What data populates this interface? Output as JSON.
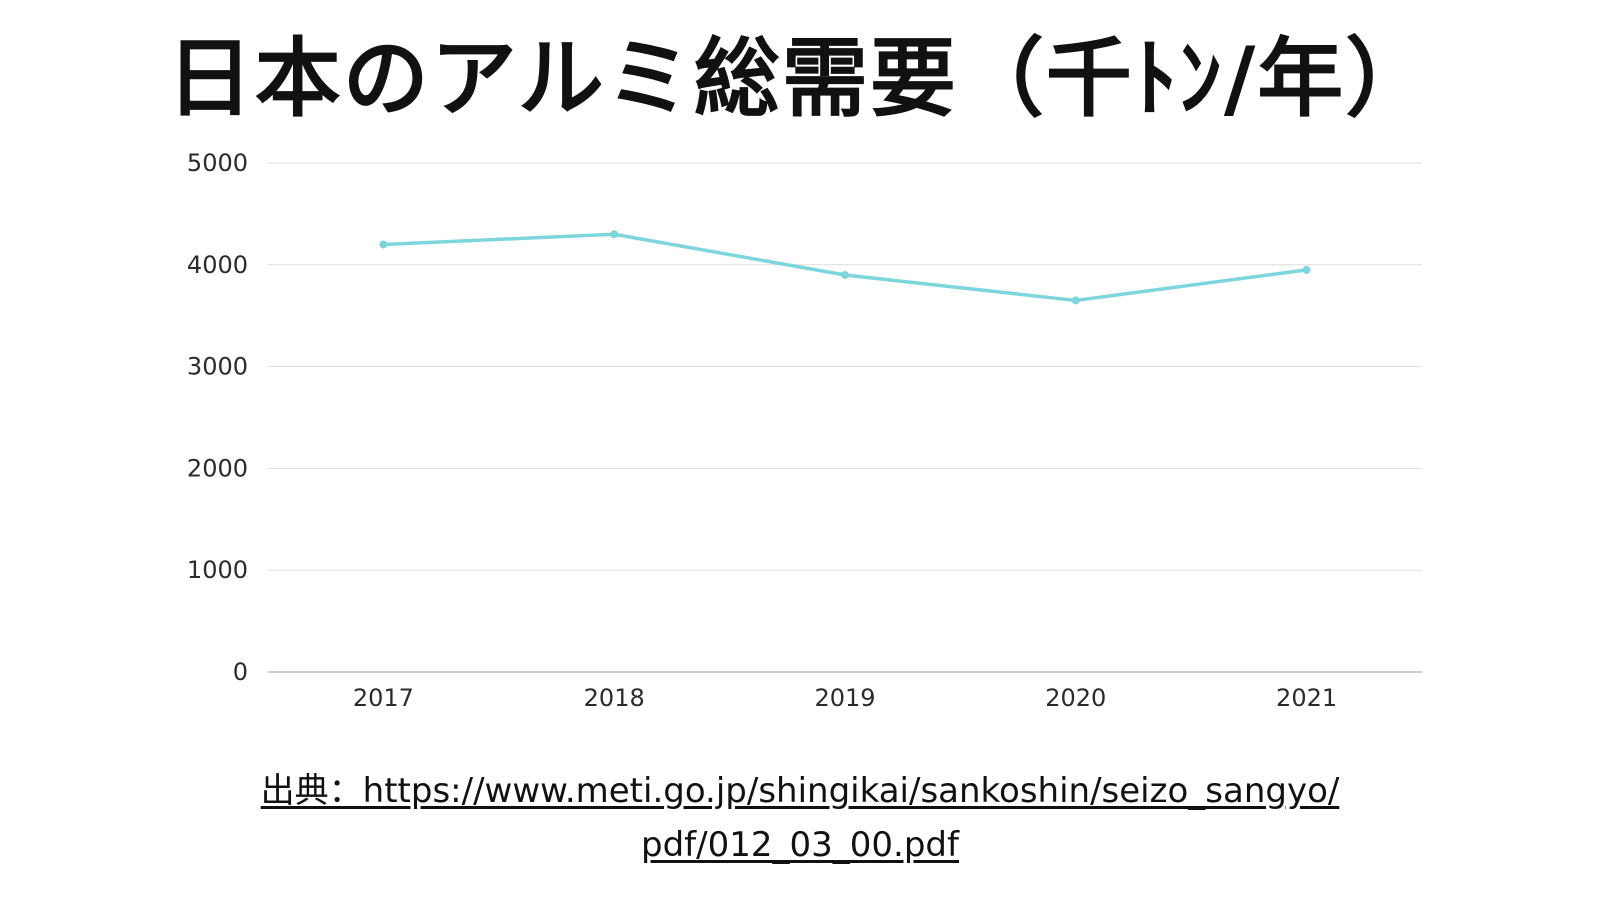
{
  "page": {
    "title": "日本のアルミ総需要（千ﾄﾝ/年）",
    "source_line1": "出典：https://www.meti.go.jp/shingikai/sankoshin/seizo_sangyo/",
    "source_line2": "pdf/012_03_00.pdf"
  },
  "colors": {
    "line": "#7dd6dc",
    "grid": "#dddddd",
    "axis": "#bbbbbb"
  },
  "chart_data": {
    "type": "line",
    "title": "日本のアルミ総需要（千ﾄﾝ/年）",
    "categories": [
      "2017",
      "2018",
      "2019",
      "2020",
      "2021"
    ],
    "series": [
      {
        "values": [
          4200,
          4300,
          3900,
          3650,
          3950
        ]
      }
    ],
    "ylim": [
      0,
      5000
    ],
    "yticks": [
      0,
      1000,
      2000,
      3000,
      4000,
      5000
    ],
    "grid": true,
    "legend": "none"
  }
}
